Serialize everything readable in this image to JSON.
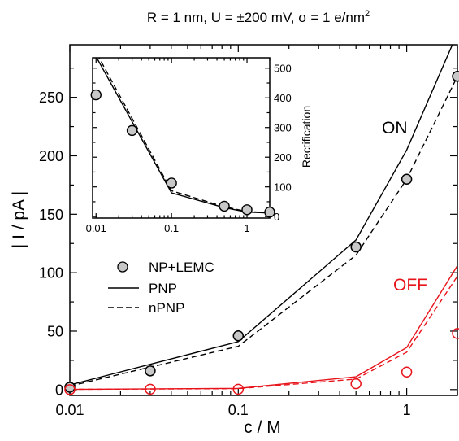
{
  "title": "R = 1 nm,  U = ±200 mV, σ = 1 e/nm²",
  "title_parts": {
    "main": "R = 1 nm,  U = ±200 mV, σ = 1 e/nm",
    "sup": "2"
  },
  "chart_data": [
    {
      "type": "line",
      "xlabel": "c / M",
      "ylabel": "| I / pA |",
      "x_scale": "log",
      "xlim": [
        0.01,
        2
      ],
      "ylim": [
        -5,
        295
      ],
      "xticks": [
        {
          "value": 0.01,
          "label": "0.01"
        },
        {
          "value": 0.1,
          "label": "0.1"
        },
        {
          "value": 1,
          "label": "1"
        }
      ],
      "yticks": [
        {
          "value": 0,
          "label": "0"
        },
        {
          "value": 50,
          "label": "50"
        },
        {
          "value": 100,
          "label": "100"
        },
        {
          "value": 150,
          "label": "150"
        },
        {
          "value": 200,
          "label": "200"
        },
        {
          "value": 250,
          "label": "250"
        }
      ],
      "legend": {
        "placement": "middle-left",
        "entries": [
          {
            "label": "NP+LEMC",
            "style": "marker"
          },
          {
            "label": "PNP",
            "style": "solid"
          },
          {
            "label": "nPNP",
            "style": "dashed"
          }
        ]
      },
      "annotations": [
        {
          "text": "ON",
          "color": "#000000"
        },
        {
          "text": "OFF",
          "color": "#e8141b"
        }
      ],
      "x": [
        0.01,
        0.03,
        0.1,
        0.5,
        1,
        2
      ],
      "series": [
        {
          "group": "ON",
          "kind": "markers",
          "color": "#000000",
          "fill": "#c8c8c8",
          "x": [
            0.01,
            0.03,
            0.1,
            0.5,
            1,
            2
          ],
          "values": [
            2,
            16,
            46,
            122,
            180,
            268
          ]
        },
        {
          "group": "ON",
          "kind": "solid",
          "color": "#000000",
          "x": [
            0.01,
            0.1,
            0.5,
            1,
            2
          ],
          "values": [
            4,
            41,
            128,
            205,
            305
          ]
        },
        {
          "group": "ON",
          "kind": "dashed",
          "color": "#000000",
          "x": [
            0.01,
            0.1,
            0.5,
            1,
            2
          ],
          "values": [
            3,
            37,
            115,
            180,
            268
          ]
        },
        {
          "group": "OFF",
          "kind": "markers",
          "color": "#e8141b",
          "fill": "none",
          "x": [
            0.01,
            0.03,
            0.1,
            0.5,
            1,
            2
          ],
          "values": [
            0,
            0.3,
            0.3,
            5,
            15,
            48
          ]
        },
        {
          "group": "OFF",
          "kind": "solid",
          "color": "#e8141b",
          "x": [
            0.01,
            0.1,
            0.5,
            1,
            2
          ],
          "values": [
            0.2,
            1,
            11,
            36,
            106
          ]
        },
        {
          "group": "OFF",
          "kind": "dashed",
          "color": "#e8141b",
          "x": [
            0.01,
            0.1,
            0.5,
            1,
            2
          ],
          "values": [
            0.2,
            0.8,
            9,
            32,
            97
          ]
        }
      ]
    },
    {
      "type": "line",
      "inset": true,
      "ylabel": "Rectification",
      "x_scale": "log",
      "xlim": [
        0.009,
        2
      ],
      "ylim": [
        -5,
        535
      ],
      "xticks": [
        {
          "value": 0.01,
          "label": "0.01"
        },
        {
          "value": 0.1,
          "label": "0.1"
        },
        {
          "value": 1,
          "label": "1"
        }
      ],
      "yticks": [
        {
          "value": 0,
          "label": "0"
        },
        {
          "value": 100,
          "label": "100"
        },
        {
          "value": 200,
          "label": "200"
        },
        {
          "value": 300,
          "label": "300"
        },
        {
          "value": 400,
          "label": "400"
        },
        {
          "value": 500,
          "label": "500"
        }
      ],
      "series": [
        {
          "kind": "markers",
          "color": "#000000",
          "fill": "#c8c8c8",
          "x": [
            0.01,
            0.03,
            0.1,
            0.5,
            1,
            2
          ],
          "values": [
            410,
            290,
            113,
            35,
            23,
            15
          ]
        },
        {
          "kind": "solid",
          "color": "#000000",
          "x": [
            0.009,
            0.1,
            0.5,
            1,
            2
          ],
          "values": [
            560,
            80,
            30,
            15,
            12
          ]
        },
        {
          "kind": "dashed",
          "color": "#000000",
          "x": [
            0.009,
            0.1,
            0.5,
            1,
            2
          ],
          "values": [
            575,
            87,
            33,
            17,
            13
          ]
        }
      ]
    }
  ]
}
